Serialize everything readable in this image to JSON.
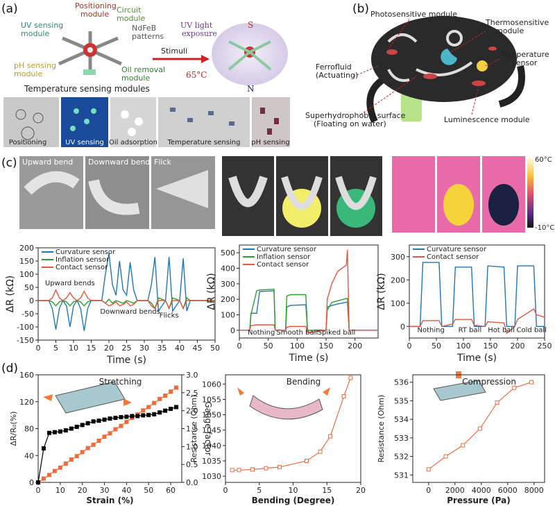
{
  "panel_labels": [
    "(a)",
    "(b)",
    "(c)",
    "(d)"
  ],
  "schematic_a": {
    "modules": [
      [
        "Positioning",
        "module"
      ],
      [
        "Circuit",
        "module"
      ],
      [
        "UV sensing",
        "module"
      ],
      [
        "NdFeB",
        "patterns"
      ],
      [
        "pH sensing",
        "module"
      ],
      [
        "Oil removal",
        "module"
      ]
    ],
    "temperature_modules": "Temperature sensing modules",
    "stimuli": "Stimuli",
    "uv_exposure": [
      "UV light",
      "exposure"
    ],
    "pole_s": "S",
    "pole_n": "N",
    "temperature": "65°C",
    "photo_captions": [
      "Positioning",
      "UV sensing",
      "Oil adsorption",
      "Temperature sensing",
      "pH sensing"
    ]
  },
  "schematic_b": {
    "photosensitive": "Photosensitive module",
    "thermosensitive": [
      "Thermosensitive",
      "module"
    ],
    "temperature_sensor": [
      "Temperature",
      "sensor"
    ],
    "ferrofluid": [
      "Ferrofluid",
      "(Actuating)"
    ],
    "superhydrophobic": [
      "Superhydrophobic surface",
      "(Floating on water)"
    ],
    "luminescence": "Luminescence module"
  },
  "photos_c": {
    "labels": [
      "Upward bend",
      "Downward bend",
      "Flick"
    ],
    "colorbar": [
      "60°C",
      "-10°C"
    ]
  },
  "chart_data": [
    {
      "type": "line",
      "xlabel": "Time (s)",
      "ylabel": "ΔR (kΩ)",
      "legend": "upper left",
      "xlim": [
        0,
        50
      ],
      "xticks": [
        0,
        5,
        10,
        15,
        20,
        25,
        30,
        35,
        40,
        45,
        50
      ],
      "ylim": [
        -150,
        200
      ],
      "yticks": [
        -150,
        -100,
        -50,
        0,
        50,
        100,
        150,
        200
      ],
      "x": [
        0,
        3,
        4,
        5,
        6,
        7,
        8,
        9,
        10,
        11,
        12,
        13,
        14,
        15,
        18,
        19,
        20,
        21,
        22,
        23,
        24,
        25,
        26,
        27,
        28,
        31,
        32,
        33,
        34,
        36,
        37,
        38,
        40,
        41,
        42,
        43,
        50
      ],
      "series": [
        {
          "name": "Curvature sensor",
          "color": "#1f77b4",
          "values": [
            0,
            0,
            -30,
            -110,
            -30,
            0,
            -20,
            -100,
            -20,
            0,
            -30,
            -115,
            -30,
            0,
            0,
            100,
            180,
            60,
            20,
            150,
            40,
            20,
            145,
            40,
            0,
            0,
            60,
            165,
            -40,
            0,
            165,
            -40,
            0,
            160,
            -40,
            0,
            0
          ]
        },
        {
          "name": "Inflation sensor",
          "color": "#2ca02c",
          "values": [
            0,
            0,
            -5,
            -20,
            -5,
            0,
            -5,
            -20,
            -5,
            0,
            -5,
            -20,
            -5,
            0,
            0,
            -10,
            5,
            -10,
            0,
            -5,
            -10,
            0,
            -5,
            -10,
            0,
            0,
            -10,
            -30,
            10,
            0,
            -30,
            10,
            0,
            -30,
            10,
            0,
            0
          ]
        },
        {
          "name": "Contact sensor",
          "color": "#e8553d",
          "values": [
            0,
            0,
            10,
            40,
            10,
            0,
            10,
            30,
            10,
            0,
            10,
            35,
            10,
            0,
            0,
            -10,
            -20,
            -15,
            -5,
            -20,
            -15,
            -5,
            -20,
            -15,
            0,
            0,
            -20,
            -30,
            0,
            0,
            -30,
            0,
            0,
            -30,
            0,
            0,
            0
          ]
        }
      ],
      "annotations": [
        {
          "text": "Upward bends",
          "x": 9,
          "y": 58
        },
        {
          "text": "Downward bends",
          "x": 26,
          "y": -50
        },
        {
          "text": "Flicks",
          "x": 37,
          "y": -65
        }
      ]
    },
    {
      "type": "line",
      "xlabel": "Time (s)",
      "ylabel": "ΔR (kΩ)",
      "legend": "upper left",
      "xlim": [
        0,
        240
      ],
      "xticks": [
        0,
        50,
        100,
        150,
        200
      ],
      "ylim": [
        -50,
        550
      ],
      "yticks": [
        0,
        100,
        200,
        300,
        400,
        500
      ],
      "x": [
        0,
        18,
        20,
        30,
        35,
        60,
        62,
        80,
        82,
        88,
        115,
        118,
        150,
        152,
        160,
        170,
        185,
        187,
        190,
        240
      ],
      "series": [
        {
          "name": "Curvature sensor",
          "color": "#1f77b4",
          "values": [
            0,
            0,
            110,
            110,
            250,
            255,
            0,
            0,
            150,
            160,
            165,
            0,
            0,
            150,
            160,
            170,
            180,
            180,
            0,
            0
          ]
        },
        {
          "name": "Inflation sensor",
          "color": "#2ca02c",
          "values": [
            0,
            0,
            100,
            255,
            260,
            265,
            0,
            0,
            220,
            230,
            230,
            0,
            0,
            130,
            180,
            190,
            205,
            205,
            0,
            0
          ]
        },
        {
          "name": "Contact sensor",
          "color": "#e8553d",
          "values": [
            0,
            0,
            30,
            35,
            35,
            35,
            0,
            0,
            20,
            25,
            25,
            -15,
            0,
            200,
            300,
            380,
            420,
            520,
            0,
            0
          ]
        }
      ],
      "annotations": [
        {
          "text": "Nothing",
          "x": 38,
          "y": -28
        },
        {
          "text": "Smooth ball",
          "x": 100,
          "y": -28
        },
        {
          "text": "Spiked ball",
          "x": 168,
          "y": -28
        }
      ]
    },
    {
      "type": "line",
      "xlabel": "Time (s)",
      "ylabel": "ΔR (kΩ)",
      "legend": "upper left",
      "xlim": [
        0,
        250
      ],
      "xticks": [
        0,
        50,
        100,
        150,
        200,
        250
      ],
      "ylim": [
        -50,
        350
      ],
      "yticks": [
        0,
        100,
        200,
        300
      ],
      "x": [
        0,
        20,
        25,
        55,
        60,
        80,
        85,
        115,
        120,
        140,
        145,
        175,
        180,
        195,
        200,
        230,
        235,
        250
      ],
      "series": [
        {
          "name": "Curvature sensor",
          "color": "#1f77b4",
          "values": [
            0,
            0,
            275,
            275,
            0,
            0,
            255,
            255,
            0,
            0,
            260,
            255,
            0,
            0,
            260,
            260,
            0,
            0
          ]
        },
        {
          "name": "Contact sensor",
          "color": "#e8553d",
          "values": [
            0,
            0,
            25,
            25,
            0,
            10,
            30,
            30,
            5,
            0,
            20,
            15,
            -30,
            0,
            30,
            75,
            50,
            40
          ]
        }
      ],
      "annotations": [
        {
          "text": "Nothing",
          "x": 40,
          "y": -25
        },
        {
          "text": "RT ball",
          "x": 112,
          "y": -25
        },
        {
          "text": "Hot ball",
          "x": 170,
          "y": -25
        },
        {
          "text": "Cold ball",
          "x": 226,
          "y": -25
        }
      ]
    },
    {
      "type": "line",
      "title": "Stretching",
      "xlabel": "Strain (%)",
      "ylabel": "ΔR/R₀(%)",
      "y2label": "Gauge factor",
      "marker": "square",
      "xlim": [
        0,
        65
      ],
      "xticks": [
        0,
        10,
        20,
        30,
        40,
        50,
        60
      ],
      "ylim": [
        0,
        160
      ],
      "yticks": [
        0,
        40,
        80,
        120,
        160
      ],
      "y2lim": [
        0,
        3
      ],
      "y2ticks": [
        {
          "value": 0,
          "label": "0.0"
        },
        0.5,
        {
          "value": 1,
          "label": "1.0"
        },
        1.5,
        {
          "value": 2,
          "label": "2.0"
        },
        2.5,
        {
          "value": 3,
          "label": "3.0"
        }
      ],
      "x": [
        0,
        2.5,
        5,
        7.5,
        10,
        12.5,
        15,
        17.5,
        20,
        22.5,
        25,
        27.5,
        30,
        32.5,
        35,
        37.5,
        40,
        42.5,
        45,
        47.5,
        50,
        52.5,
        55,
        57.5,
        60,
        62.5
      ],
      "series": [
        {
          "color": "#f06a3a",
          "filled": true,
          "values": [
            0,
            5.6,
            11,
            17,
            22,
            28,
            34,
            39,
            45,
            51,
            56,
            62,
            68,
            73,
            79,
            84,
            90,
            96,
            101,
            107,
            112,
            118,
            124,
            129,
            135,
            141
          ]
        },
        {
          "color": "#000000",
          "filled": true,
          "axis": "y2",
          "values": [
            0,
            0.95,
            1.38,
            1.4,
            1.42,
            1.45,
            1.5,
            1.55,
            1.6,
            1.65,
            1.7,
            1.72,
            1.75,
            1.78,
            1.8,
            1.82,
            1.83,
            1.85,
            1.85,
            1.87,
            1.88,
            1.9,
            1.95,
            2.0,
            2.05,
            2.1
          ]
        }
      ]
    },
    {
      "type": "line",
      "title": "Bending",
      "xlabel": "Bending (Degree)",
      "ylabel": "Resistance (Ohm)",
      "marker": "square",
      "xlim": [
        0,
        20
      ],
      "xticks": [
        0,
        5,
        10,
        15,
        20
      ],
      "ylim": [
        1028,
        1063
      ],
      "yticks": [
        1030,
        1035,
        1040,
        1045,
        1050,
        1055,
        1060
      ],
      "x": [
        1,
        2,
        4,
        6,
        8,
        12,
        14,
        15.5,
        17.5,
        18.5
      ],
      "series": [
        {
          "color": "#f06a3a",
          "filled": false,
          "values": [
            1032,
            1032,
            1032.2,
            1032.6,
            1033,
            1035,
            1038,
            1043,
            1056,
            1062
          ]
        }
      ]
    },
    {
      "type": "line",
      "title": "Compression",
      "xlabel": "Pressure (Pa)",
      "ylabel": "Resistance (Ohm)",
      "marker": "square",
      "xlim": [
        -1200,
        8800
      ],
      "xticks": [
        0,
        2000,
        4000,
        6000,
        8000
      ],
      "ylim": [
        530.6,
        536.4
      ],
      "yticks": [
        531,
        532,
        533,
        534,
        535,
        536
      ],
      "x": [
        0,
        1300,
        2600,
        3900,
        5200,
        6500,
        7800
      ],
      "series": [
        {
          "color": "#f06a3a",
          "filled": false,
          "values": [
            531.3,
            532,
            532.6,
            533.5,
            534.9,
            535.7,
            536
          ]
        }
      ]
    }
  ]
}
